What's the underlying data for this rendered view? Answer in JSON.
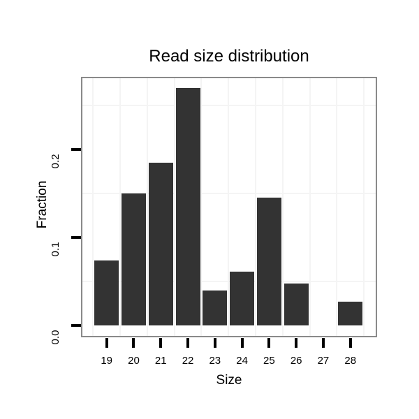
{
  "figure": {
    "background": "#ffffff"
  },
  "chart_data": {
    "type": "bar",
    "title": "Read size distribution",
    "xlabel": "Size",
    "ylabel": "Fraction",
    "categories": [
      "19",
      "20",
      "21",
      "22",
      "23",
      "24",
      "25",
      "26",
      "27",
      "28"
    ],
    "values": [
      0.074,
      0.15,
      0.185,
      0.27,
      0.04,
      0.061,
      0.145,
      0.048,
      0.0,
      0.027
    ],
    "y_tick_labels": [
      "0.0",
      "0.1",
      "0.2"
    ],
    "y_tick_values": [
      0.0,
      0.1,
      0.2
    ],
    "y_minor_gridlines": [
      0.05,
      0.15,
      0.25
    ],
    "x_minor_gridlines_between_bars": true,
    "ylim": [
      -0.014,
      0.282
    ],
    "grid": "minor gridlines only, very light gray on white panel",
    "legend": "none",
    "colors": {
      "bar": "#333333",
      "panel_border": "#8a8a8a",
      "gridline": "#f4f4f4",
      "tick": "#000000",
      "text": "#000000",
      "background": "#ffffff"
    }
  }
}
